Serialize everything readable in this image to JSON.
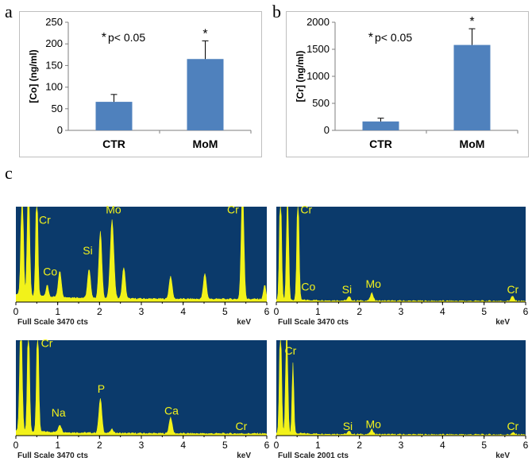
{
  "panels": {
    "a": "a",
    "b": "b",
    "c": "c"
  },
  "colors": {
    "bar": "#4f81bd",
    "spectrum_bg": "#0b3a6b",
    "spectrum_fill": "#f2f21a",
    "peak_label": "#f2f21a"
  },
  "chart_data": [
    {
      "type": "bar",
      "id": "a",
      "categories": [
        "CTR",
        "MoM"
      ],
      "values": [
        66,
        165
      ],
      "errors": [
        17,
        42
      ],
      "ylabel": "[Co]  (ng/ml)",
      "ylim": [
        0,
        250
      ],
      "yticks": [
        "0",
        "50",
        "100",
        "150",
        "200",
        "250"
      ],
      "annotation": "p< 0.05",
      "annotation_star": "*",
      "sig_marker": "*"
    },
    {
      "type": "bar",
      "id": "b",
      "categories": [
        "CTR",
        "MoM"
      ],
      "values": [
        165,
        1580
      ],
      "errors": [
        60,
        300
      ],
      "ylabel": "[Cr]  (ng/ml)",
      "ylim": [
        0,
        2000
      ],
      "yticks": [
        "0",
        "500",
        "1000",
        "1500",
        "2000"
      ],
      "annotation": "p< 0.05",
      "annotation_star": "*",
      "sig_marker": "*"
    },
    {
      "type": "area",
      "id": "c1",
      "xlabel": "keV",
      "xlim": [
        0,
        6
      ],
      "xticks": [
        "0",
        "1",
        "2",
        "3",
        "4",
        "5",
        "6"
      ],
      "caption": "Full Scale 3470 cts",
      "baseline": 0.03,
      "peaks": [
        {
          "x": 0.15,
          "h": 1.2,
          "w": 0.04
        },
        {
          "x": 0.3,
          "h": 1.2,
          "w": 0.04
        },
        {
          "x": 0.5,
          "h": 1.2,
          "w": 0.035
        },
        {
          "x": 0.75,
          "h": 0.12,
          "w": 0.04
        },
        {
          "x": 1.05,
          "h": 0.28,
          "w": 0.05
        },
        {
          "x": 1.75,
          "h": 0.3,
          "w": 0.05
        },
        {
          "x": 2.02,
          "h": 0.7,
          "w": 0.05
        },
        {
          "x": 2.3,
          "h": 0.82,
          "w": 0.06
        },
        {
          "x": 2.58,
          "h": 0.33,
          "w": 0.05
        },
        {
          "x": 3.7,
          "h": 0.24,
          "w": 0.05
        },
        {
          "x": 4.52,
          "h": 0.27,
          "w": 0.05
        },
        {
          "x": 5.42,
          "h": 1.2,
          "w": 0.045
        },
        {
          "x": 5.95,
          "h": 0.15,
          "w": 0.04
        }
      ],
      "labels": [
        {
          "text": "Cr",
          "x": 0.55,
          "y": 0.82
        },
        {
          "text": "Co",
          "x": 0.65,
          "y": 0.28
        },
        {
          "text": "Si",
          "x": 1.6,
          "y": 0.5
        },
        {
          "text": "Mo",
          "x": 2.15,
          "y": 0.93
        },
        {
          "text": "Cr",
          "x": 5.05,
          "y": 0.93
        }
      ]
    },
    {
      "type": "area",
      "id": "c2",
      "xlabel": "keV",
      "xlim": [
        0,
        6
      ],
      "xticks": [
        "0",
        "1",
        "2",
        "3",
        "4",
        "5",
        "6"
      ],
      "caption": "Full Scale 3470 cts",
      "baseline": 0.01,
      "peaks": [
        {
          "x": 0.1,
          "h": 1.2,
          "w": 0.035
        },
        {
          "x": 0.27,
          "h": 1.2,
          "w": 0.035
        },
        {
          "x": 0.52,
          "h": 1.2,
          "w": 0.035
        },
        {
          "x": 1.75,
          "h": 0.04,
          "w": 0.05
        },
        {
          "x": 2.3,
          "h": 0.08,
          "w": 0.05
        },
        {
          "x": 5.68,
          "h": 0.05,
          "w": 0.05
        }
      ],
      "labels": [
        {
          "text": "Cr",
          "x": 0.58,
          "y": 0.93
        },
        {
          "text": "Co",
          "x": 0.6,
          "y": 0.12
        },
        {
          "text": "Si",
          "x": 1.58,
          "y": 0.09
        },
        {
          "text": "Mo",
          "x": 2.15,
          "y": 0.15
        },
        {
          "text": "Cr",
          "x": 5.55,
          "y": 0.09
        }
      ]
    },
    {
      "type": "area",
      "id": "c3",
      "xlabel": "keV",
      "xlim": [
        0,
        6
      ],
      "xticks": [
        "0",
        "1",
        "2",
        "3",
        "4",
        "5",
        "6"
      ],
      "caption": "Full Scale 3470 cts",
      "baseline": 0.02,
      "peaks": [
        {
          "x": 0.12,
          "h": 1.2,
          "w": 0.04
        },
        {
          "x": 0.3,
          "h": 1.2,
          "w": 0.035
        },
        {
          "x": 0.52,
          "h": 1.2,
          "w": 0.035
        },
        {
          "x": 1.05,
          "h": 0.08,
          "w": 0.05
        },
        {
          "x": 2.02,
          "h": 0.36,
          "w": 0.05
        },
        {
          "x": 3.7,
          "h": 0.17,
          "w": 0.05
        },
        {
          "x": 2.3,
          "h": 0.04,
          "w": 0.05
        }
      ],
      "labels": [
        {
          "text": "Cr",
          "x": 0.6,
          "y": 0.93
        },
        {
          "text": "Na",
          "x": 0.85,
          "y": 0.2
        },
        {
          "text": "P",
          "x": 1.95,
          "y": 0.45
        },
        {
          "text": "Ca",
          "x": 3.55,
          "y": 0.22
        },
        {
          "text": "Cr",
          "x": 5.25,
          "y": 0.06
        }
      ]
    },
    {
      "type": "area",
      "id": "c4",
      "xlabel": "keV",
      "xlim": [
        0,
        6
      ],
      "xticks": [
        "0",
        "1",
        "2",
        "3",
        "4",
        "5",
        "6"
      ],
      "caption": "Full Scale 2001 cts",
      "baseline": 0.01,
      "peaks": [
        {
          "x": 0.1,
          "h": 1.2,
          "w": 0.035
        },
        {
          "x": 0.25,
          "h": 1.2,
          "w": 0.035
        },
        {
          "x": 0.4,
          "h": 0.75,
          "w": 0.03
        },
        {
          "x": 1.75,
          "h": 0.03,
          "w": 0.05
        },
        {
          "x": 2.3,
          "h": 0.05,
          "w": 0.05
        },
        {
          "x": 5.7,
          "h": 0.02,
          "w": 0.05
        }
      ],
      "labels": [
        {
          "text": "Cr",
          "x": 0.2,
          "y": 0.85
        },
        {
          "text": "Si",
          "x": 1.6,
          "y": 0.06
        },
        {
          "text": "Mo",
          "x": 2.15,
          "y": 0.08
        },
        {
          "text": "Cr",
          "x": 5.55,
          "y": 0.06
        }
      ]
    }
  ]
}
